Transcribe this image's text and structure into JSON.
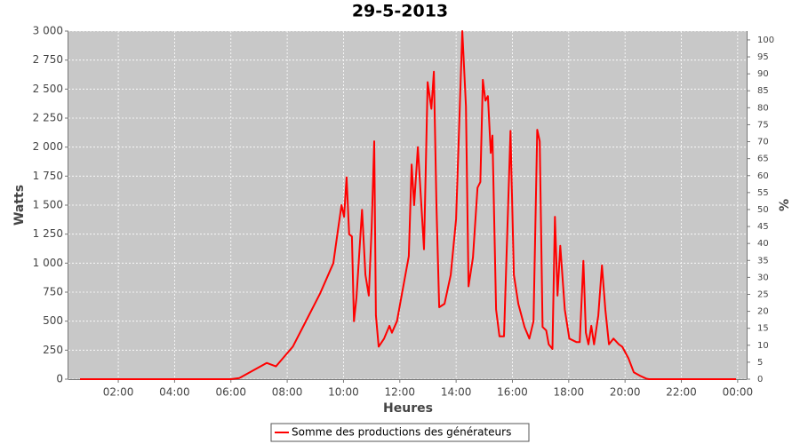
{
  "chart_data": {
    "type": "line",
    "title": "29-5-2013",
    "x_label": "Heures",
    "y_label": "Watts",
    "y2_label": "%",
    "x": [
      0.64,
      6.0,
      6.3,
      7.27,
      7.6,
      8.2,
      8.53,
      9.17,
      9.64,
      9.8,
      9.93,
      10.02,
      10.11,
      10.2,
      10.3,
      10.37,
      10.46,
      10.66,
      10.78,
      10.9,
      11.0,
      11.09,
      11.15,
      11.25,
      11.44,
      11.63,
      11.72,
      11.9,
      12.16,
      12.32,
      12.42,
      12.51,
      12.64,
      12.86,
      12.99,
      13.12,
      13.21,
      13.3,
      13.4,
      13.59,
      13.81,
      14.0,
      14.13,
      14.22,
      14.35,
      14.44,
      14.6,
      14.76,
      14.86,
      14.95,
      15.04,
      15.13,
      15.23,
      15.29,
      15.42,
      15.54,
      15.7,
      15.93,
      16.05,
      16.21,
      16.43,
      16.6,
      16.75,
      16.88,
      16.97,
      17.07,
      17.2,
      17.29,
      17.42,
      17.51,
      17.6,
      17.7,
      17.86,
      18.02,
      18.27,
      18.39,
      18.52,
      18.61,
      18.7,
      18.8,
      18.9,
      19.05,
      19.18,
      19.3,
      19.43,
      19.59,
      19.78,
      19.9,
      20.12,
      20.31,
      20.53,
      20.75,
      20.85,
      23.94
    ],
    "series": [
      {
        "name": "Somme des productions des  générateurs",
        "color": "#ff0000",
        "values": [
          0,
          0,
          10,
          140,
          110,
          280,
          436,
          740,
          1000,
          1280,
          1500,
          1400,
          1740,
          1250,
          1230,
          500,
          700,
          1460,
          900,
          720,
          1300,
          2050,
          550,
          280,
          350,
          460,
          400,
          500,
          850,
          1060,
          1850,
          1500,
          2000,
          1120,
          2560,
          2330,
          2650,
          1500,
          620,
          650,
          900,
          1380,
          2350,
          3000,
          2350,
          800,
          1050,
          1650,
          1700,
          2580,
          2400,
          2440,
          1950,
          2100,
          600,
          370,
          370,
          2140,
          900,
          650,
          450,
          350,
          500,
          2150,
          2050,
          450,
          420,
          300,
          260,
          1400,
          720,
          1150,
          600,
          350,
          320,
          320,
          1020,
          400,
          300,
          460,
          300,
          550,
          980,
          600,
          300,
          350,
          300,
          280,
          180,
          60,
          30,
          5,
          0,
          0
        ]
      }
    ],
    "xlim": [
      0.23,
      24.32
    ],
    "xticks": [
      {
        "value": 2,
        "label": "02:00"
      },
      {
        "value": 4,
        "label": "04:00"
      },
      {
        "value": 6,
        "label": "06:00"
      },
      {
        "value": 8,
        "label": "08:00"
      },
      {
        "value": 10,
        "label": "10:00"
      },
      {
        "value": 12,
        "label": "12:00"
      },
      {
        "value": 14,
        "label": "14:00"
      },
      {
        "value": 16,
        "label": "16:00"
      },
      {
        "value": 18,
        "label": "18:00"
      },
      {
        "value": 20,
        "label": "20:00"
      },
      {
        "value": 22,
        "label": "22:00"
      },
      {
        "value": 24,
        "label": "00:00"
      }
    ],
    "ylim": [
      0,
      3000
    ],
    "yticks": [
      0,
      250,
      500,
      750,
      {
        "value": 1000,
        "label": "1 000"
      },
      {
        "value": 1250,
        "label": "1 250"
      },
      {
        "value": 1500,
        "label": "1 500"
      },
      {
        "value": 1750,
        "label": "1 750"
      },
      {
        "value": 2000,
        "label": "2 000"
      },
      {
        "value": 2250,
        "label": "2 250"
      },
      {
        "value": 2500,
        "label": "2 500"
      },
      {
        "value": 2750,
        "label": "2 750"
      },
      {
        "value": 3000,
        "label": "3 000"
      }
    ],
    "y2lim": [
      0,
      102.6
    ],
    "y2ticks": [
      0,
      5,
      10,
      15,
      20,
      25,
      30,
      35,
      40,
      45,
      50,
      55,
      60,
      65,
      70,
      75,
      80,
      85,
      90,
      95,
      100
    ],
    "grid": true
  }
}
